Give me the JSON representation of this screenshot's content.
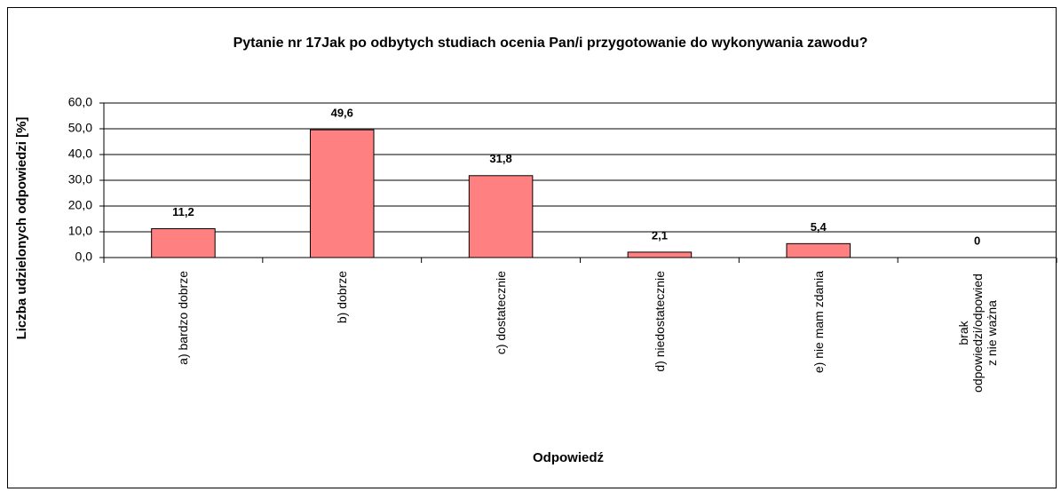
{
  "chart_data": {
    "type": "bar",
    "title": "Pytanie nr 17Jak po odbytych studiach ocenia Pan/i przygotowanie do wykonywania zawodu?",
    "x_label": "Odpowiedź",
    "y_label": "Liczba udzielonych odpowiedzi [%]",
    "categories": [
      "a) bardzo dobrze",
      "b) dobrze",
      "c) dostatecznie",
      "d) niedostatecznie",
      "e) nie mam zdania",
      "brak odpowiedzi/odpowied z nie ważna"
    ],
    "values": [
      11.2,
      49.6,
      31.8,
      2.1,
      5.4,
      0
    ],
    "value_labels": [
      "11,2",
      "49,6",
      "31,8",
      "2,1",
      "5,4",
      "0"
    ],
    "color": "#ff8080",
    "ylim": [
      0,
      60
    ],
    "yticks": [
      {
        "value": 0,
        "label": "0,0"
      },
      {
        "value": 10,
        "label": "10,0"
      },
      {
        "value": 20,
        "label": "20,0"
      },
      {
        "value": 30,
        "label": "30,0"
      },
      {
        "value": 40,
        "label": "40,0"
      },
      {
        "value": 50,
        "label": "50,0"
      },
      {
        "value": 60,
        "label": "60,0"
      }
    ],
    "grid": true
  }
}
